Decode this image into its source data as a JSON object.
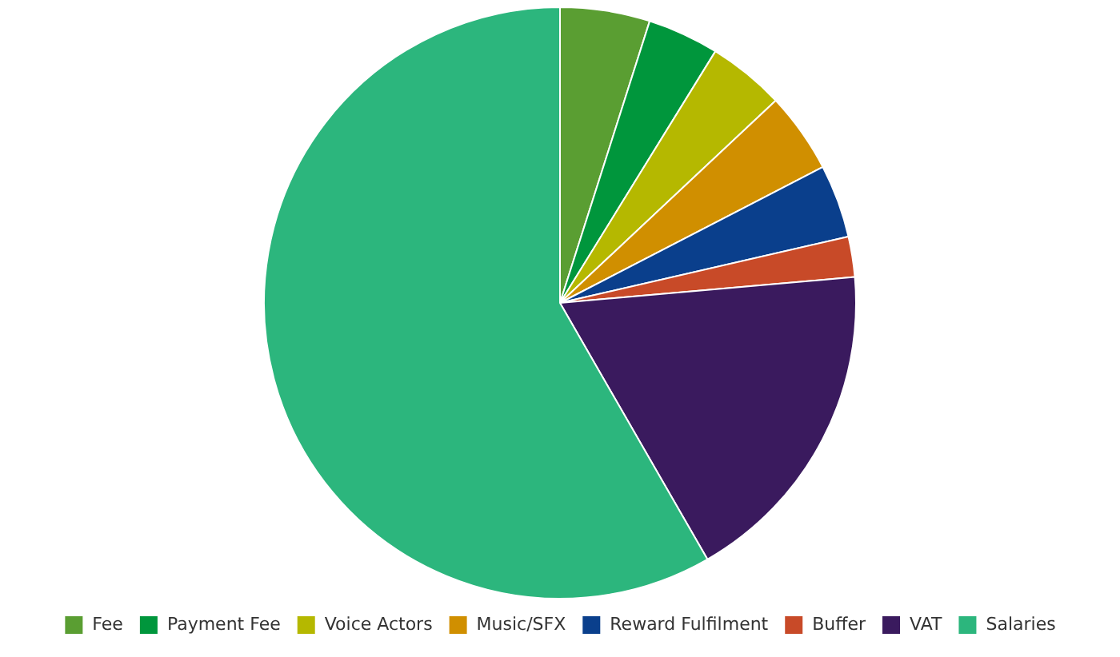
{
  "chart_data": {
    "type": "pie",
    "categories": [
      "Fee",
      "Payment Fee",
      "Voice Actors",
      "Music/SFX",
      "Reward Fulfilment",
      "Buffer",
      "VAT",
      "Salaries"
    ],
    "values": [
      4.9,
      3.9,
      4.2,
      4.4,
      4.0,
      2.2,
      18.1,
      58.3
    ],
    "colors": [
      "#5a9e32",
      "#00963c",
      "#b5b800",
      "#d08f00",
      "#0a3f8c",
      "#c84a28",
      "#3a1a5e",
      "#2cb67d"
    ],
    "legend": "bottom"
  }
}
